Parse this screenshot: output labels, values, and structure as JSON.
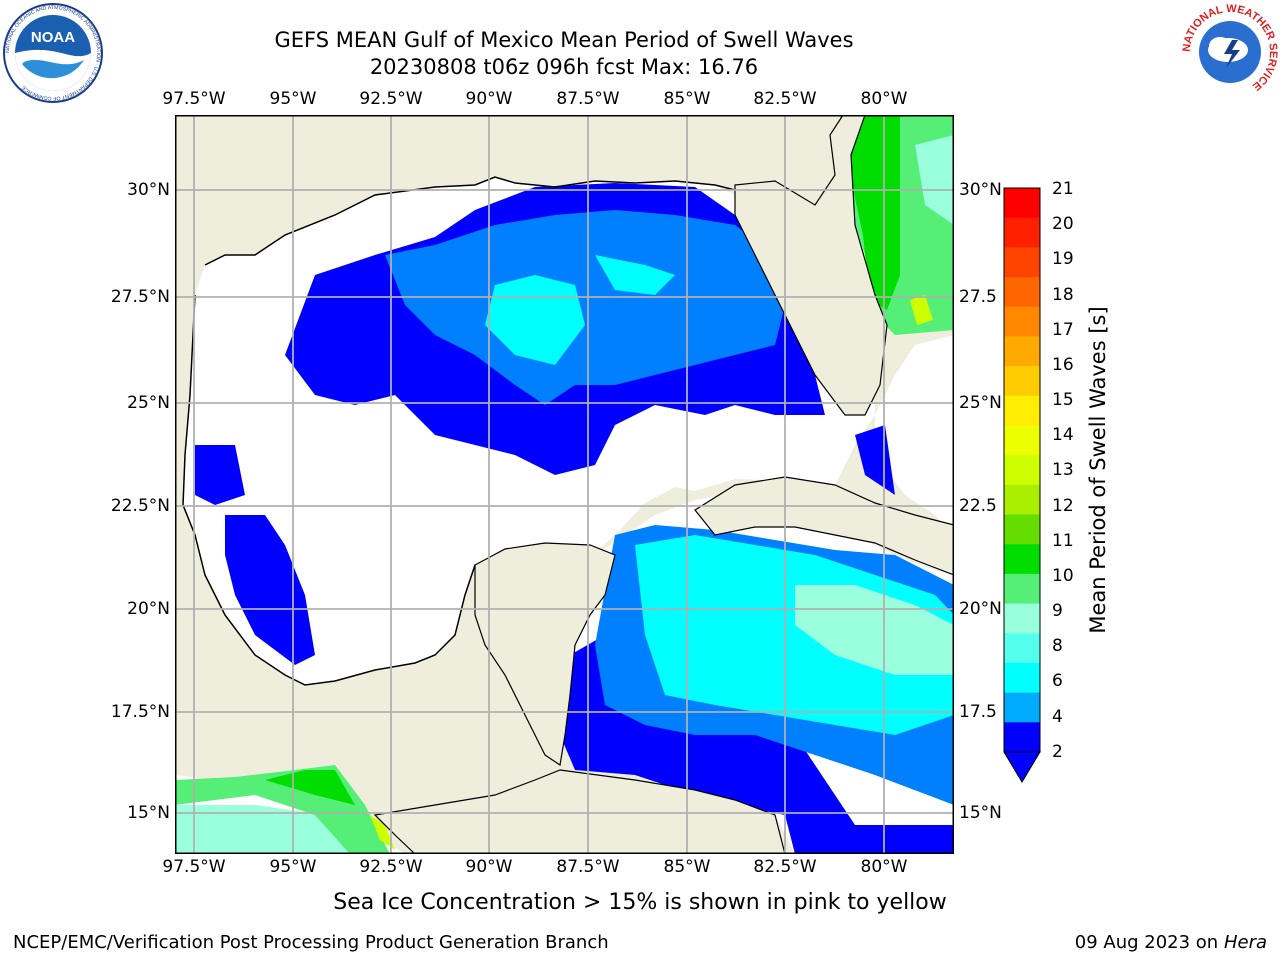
{
  "title": "GEFS MEAN Gulf of Mexico Mean Period of Swell Waves",
  "subtitle": "20230808 t06z 096h fcst   Max: 16.76",
  "lon_labels": [
    "97.5°W",
    "95°W",
    "92.5°W",
    "90°W",
    "87.5°W",
    "85°W",
    "82.5°W",
    "80°W"
  ],
  "lat_labels_left": [
    "30°N",
    "27.5°N",
    "25°N",
    "22.5°N",
    "20°N",
    "17.5°N",
    "15°N"
  ],
  "lat_labels_right": [
    "30°N",
    "27.5",
    "25°N",
    "22.5",
    "20°N",
    "17.5",
    "15°N"
  ],
  "colorbar": {
    "label": "Mean Period of Swell Waves [s]",
    "ticks": [
      "21",
      "20",
      "19",
      "18",
      "17",
      "16",
      "15",
      "14",
      "13",
      "12",
      "11",
      "10",
      "9",
      "8",
      "6",
      "4",
      "2"
    ],
    "colors": [
      "#ff0000",
      "#ff2000",
      "#ff4400",
      "#ff6600",
      "#ff8800",
      "#ffaa00",
      "#ffcc00",
      "#ffee00",
      "#eeff00",
      "#ccff00",
      "#aaee00",
      "#66dd00",
      "#00dd00",
      "#55ee77",
      "#99ffdd",
      "#55ffee",
      "#00ffff",
      "#00aaff",
      "#0000ff"
    ]
  },
  "caption": "Sea Ice Concentration > 15% is shown in pink to yellow",
  "credit": "NCEP/EMC/Verification Post Processing Product Generation Branch",
  "date": "09 Aug 2023 on",
  "machine": "Hera",
  "logo_left": {
    "text": "NOAA",
    "ring_text": "NATIONAL OCEANIC AND ATMOSPHERIC ADMINISTRATION · U.S. DEPARTMENT OF COMMERCE"
  },
  "logo_right": {
    "ring_text": "NATIONAL WEATHER SERVICE"
  },
  "theme": {
    "land": "#efeedd",
    "water_low": "#ffffff",
    "blue": "#0000ff",
    "mid": "#0080ff",
    "cyan": "#00ffff",
    "green": "#00dd00",
    "grid": "#b0b0b0"
  }
}
